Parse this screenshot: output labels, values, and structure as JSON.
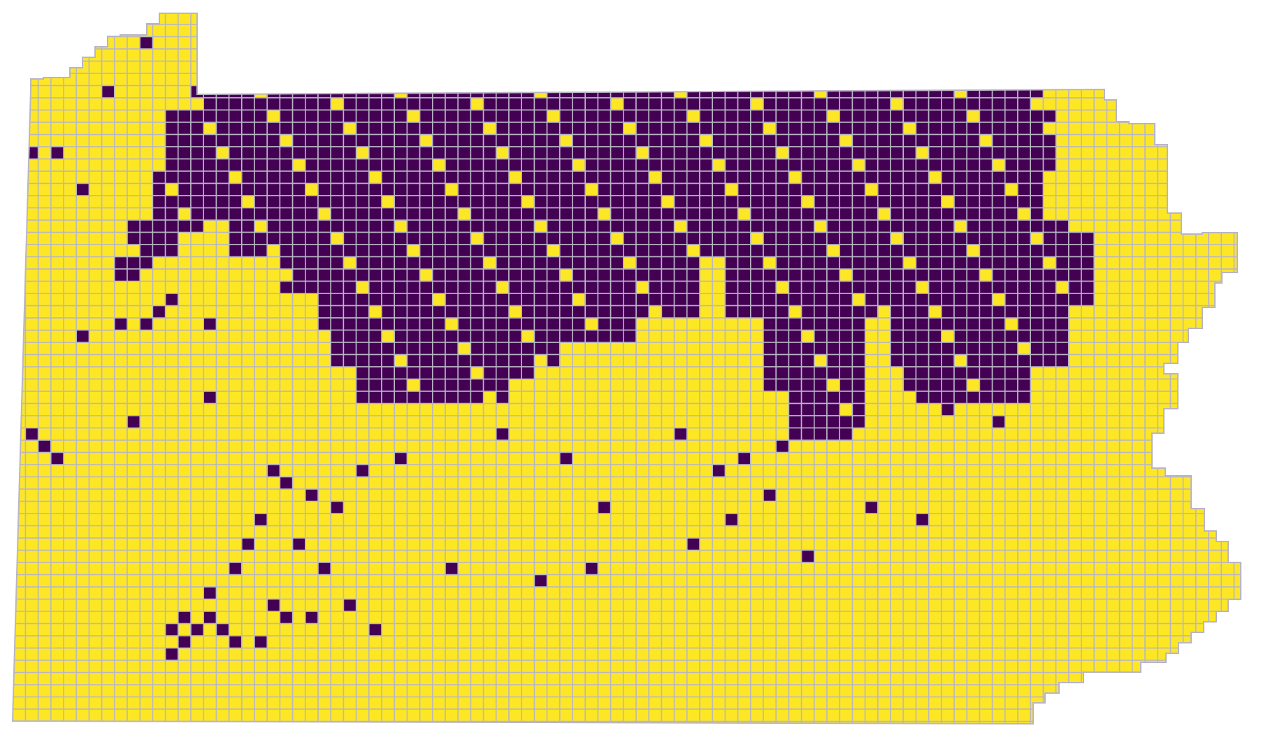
{
  "map": {
    "colors": {
      "background": "#ffffff",
      "low": "#fde725",
      "high": "#440154",
      "cell_border": "#b9b5c4"
    },
    "cell_classes": [
      "low",
      "high"
    ]
  }
}
